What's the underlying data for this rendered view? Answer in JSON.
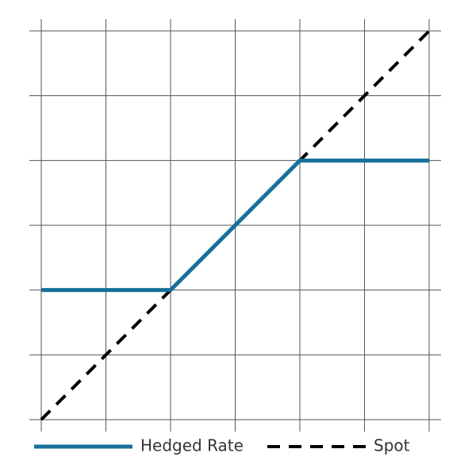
{
  "chart_data": {
    "type": "line",
    "series": [
      {
        "name": "Hedged Rate",
        "color": "#16709c",
        "dash": false,
        "x": [
          0,
          2,
          4,
          6
        ],
        "values": [
          2,
          2,
          4,
          4
        ]
      },
      {
        "name": "Spot",
        "color": "#000000",
        "dash": true,
        "x": [
          0,
          6
        ],
        "values": [
          0,
          6
        ]
      }
    ],
    "xlim": [
      0,
      6
    ],
    "ylim": [
      0,
      6
    ],
    "xticks": [
      0,
      1,
      2,
      3,
      4,
      5,
      6
    ],
    "yticks": [
      0,
      1,
      2,
      3,
      4,
      5,
      6
    ],
    "grid": true,
    "legend": "bottom"
  }
}
